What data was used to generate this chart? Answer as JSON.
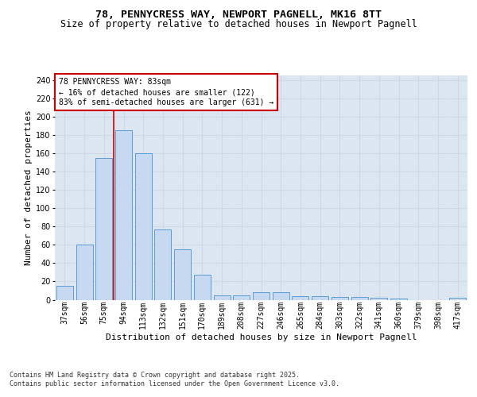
{
  "title_line1": "78, PENNYCRESS WAY, NEWPORT PAGNELL, MK16 8TT",
  "title_line2": "Size of property relative to detached houses in Newport Pagnell",
  "xlabel": "Distribution of detached houses by size in Newport Pagnell",
  "ylabel": "Number of detached properties",
  "categories": [
    "37sqm",
    "56sqm",
    "75sqm",
    "94sqm",
    "113sqm",
    "132sqm",
    "151sqm",
    "170sqm",
    "189sqm",
    "208sqm",
    "227sqm",
    "246sqm",
    "265sqm",
    "284sqm",
    "303sqm",
    "322sqm",
    "341sqm",
    "360sqm",
    "379sqm",
    "398sqm",
    "417sqm"
  ],
  "values": [
    15,
    60,
    155,
    185,
    160,
    77,
    55,
    27,
    5,
    5,
    8,
    8,
    4,
    4,
    3,
    3,
    2,
    1,
    0,
    0,
    2
  ],
  "bar_color": "#c6d9f0",
  "bar_edge_color": "#5b9bd5",
  "grid_color": "#d0d8e8",
  "bg_color": "#dce6f1",
  "annotation_text": "78 PENNYCRESS WAY: 83sqm\n← 16% of detached houses are smaller (122)\n83% of semi-detached houses are larger (631) →",
  "annotation_box_color": "#ffffff",
  "annotation_box_edge": "#cc0000",
  "vline_x": 2.5,
  "vline_color": "#cc0000",
  "ylim": [
    0,
    245
  ],
  "yticks": [
    0,
    20,
    40,
    60,
    80,
    100,
    120,
    140,
    160,
    180,
    200,
    220,
    240
  ],
  "footnote": "Contains HM Land Registry data © Crown copyright and database right 2025.\nContains public sector information licensed under the Open Government Licence v3.0.",
  "title_fontsize": 9.5,
  "subtitle_fontsize": 8.5,
  "label_fontsize": 8,
  "tick_fontsize": 7,
  "annot_fontsize": 7,
  "footnote_fontsize": 6
}
